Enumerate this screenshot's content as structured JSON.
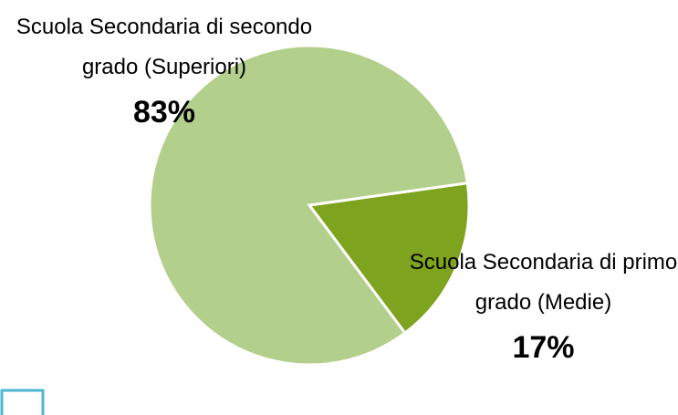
{
  "chart_data": {
    "type": "pie",
    "categories": [
      "Scuola Secondaria di primo grado (Medie)",
      "Scuola Secondaria di secondo grado (Superiori)"
    ],
    "values": [
      17,
      83
    ],
    "value_labels": [
      "17%",
      "83%"
    ],
    "colors": [
      "#7ea31e",
      "#b3cf8c"
    ]
  }
}
